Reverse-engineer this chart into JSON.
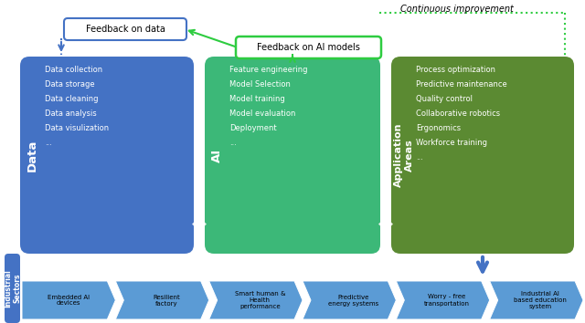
{
  "bg_color": "#ffffff",
  "continuous_improvement_text": "Continuous improvement",
  "feedback_data_text": "Feedback on data",
  "feedback_ai_text": "Feedback on AI models",
  "data_box": {
    "label": "Data",
    "color": "#4472C4",
    "items": [
      "Data collection",
      "Data storage",
      "Data cleaning",
      "Data analysis",
      "Data visulization",
      "..."
    ]
  },
  "ai_box": {
    "label": "AI",
    "color": "#3CB878",
    "items": [
      "Feature engineering",
      "Model Selection",
      "Model training",
      "Model evaluation",
      "Deployment",
      "..."
    ]
  },
  "app_box": {
    "label": "Application\nAreas",
    "color": "#5B8A32",
    "items": [
      "Process optimization",
      "Predictive maintenance",
      "Quality control",
      "Collaborative robotics",
      "Ergonomics",
      "Workforce training",
      "..."
    ]
  },
  "industrial_sectors_label": "Industrial\nSectors",
  "industrial_items": [
    "Embedded AI\ndevices",
    "Resilient\nfactory",
    "Smart human &\nHealth\nperformance",
    "Predictive\nenergy systems",
    "Worry - free\ntransportation",
    "Industrial AI\nbased education\nsystem"
  ],
  "feedback_data_color": "#4472C4",
  "feedback_ai_color": "#2ECC40",
  "dotted_green_color": "#2ECC40",
  "dotted_blue_color": "#4472C4",
  "industrial_bar_color": "#4472C4",
  "industrial_chevron_color": "#5B9BD5",
  "big_arrow_color": "#2E75B6",
  "down_arrow_color": "#4472C4"
}
